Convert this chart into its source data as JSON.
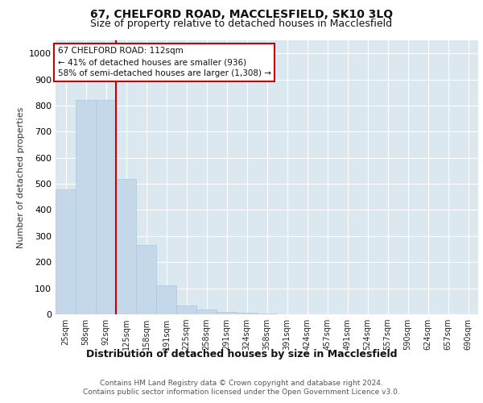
{
  "title1": "67, CHELFORD ROAD, MACCLESFIELD, SK10 3LQ",
  "title2": "Size of property relative to detached houses in Macclesfield",
  "xlabel": "Distribution of detached houses by size in Macclesfield",
  "ylabel": "Number of detached properties",
  "footnote1": "Contains HM Land Registry data © Crown copyright and database right 2024.",
  "footnote2": "Contains public sector information licensed under the Open Government Licence v3.0.",
  "annotation_line1": "67 CHELFORD ROAD: 112sqm",
  "annotation_line2": "← 41% of detached houses are smaller (936)",
  "annotation_line3": "58% of semi-detached houses are larger (1,308) →",
  "bar_labels": [
    "25sqm",
    "58sqm",
    "92sqm",
    "125sqm",
    "158sqm",
    "191sqm",
    "225sqm",
    "258sqm",
    "291sqm",
    "324sqm",
    "358sqm",
    "391sqm",
    "424sqm",
    "457sqm",
    "491sqm",
    "524sqm",
    "557sqm",
    "590sqm",
    "624sqm",
    "657sqm",
    "690sqm"
  ],
  "bar_values": [
    480,
    820,
    820,
    520,
    265,
    110,
    35,
    20,
    10,
    5,
    3,
    0,
    0,
    0,
    0,
    0,
    0,
    0,
    0,
    0,
    0
  ],
  "bar_color": "#c5d8ea",
  "bar_edge_color": "#a8c8df",
  "vline_x_index": 2.5,
  "vline_color": "#cc0000",
  "annotation_box_color": "#ffffff",
  "annotation_box_edge": "#cc0000",
  "ylim": [
    0,
    1050
  ],
  "yticks": [
    0,
    100,
    200,
    300,
    400,
    500,
    600,
    700,
    800,
    900,
    1000
  ],
  "plot_bg": "#dce8f0",
  "grid_color": "#ffffff",
  "title1_fontsize": 10,
  "title2_fontsize": 9,
  "ann_fontsize": 7.5,
  "ylabel_fontsize": 8,
  "xlabel_fontsize": 9,
  "tick_fontsize": 7,
  "footnote_fontsize": 6.5
}
